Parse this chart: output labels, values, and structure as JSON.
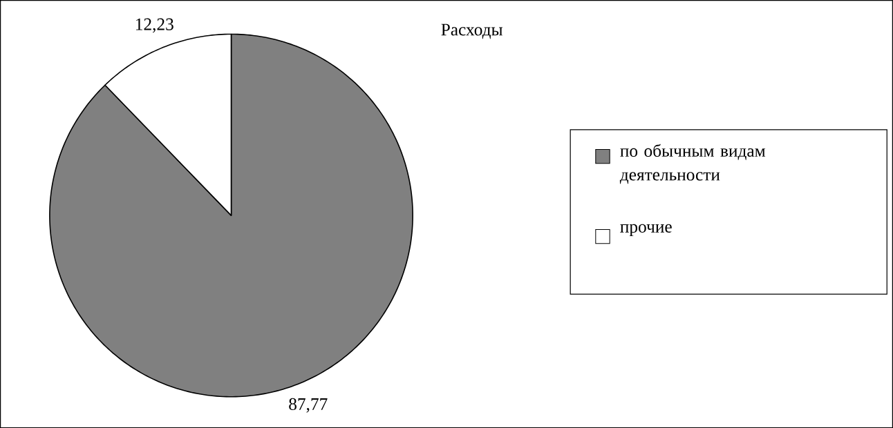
{
  "chart_data": {
    "type": "pie",
    "title": "Расходы",
    "categories": [
      "по обычным видам деятельности",
      "прочие"
    ],
    "values": [
      87.77,
      12.23
    ],
    "colors": [
      "#808080",
      "#ffffff"
    ],
    "value_labels": [
      "87,77",
      "12,23"
    ],
    "legend": "right"
  }
}
